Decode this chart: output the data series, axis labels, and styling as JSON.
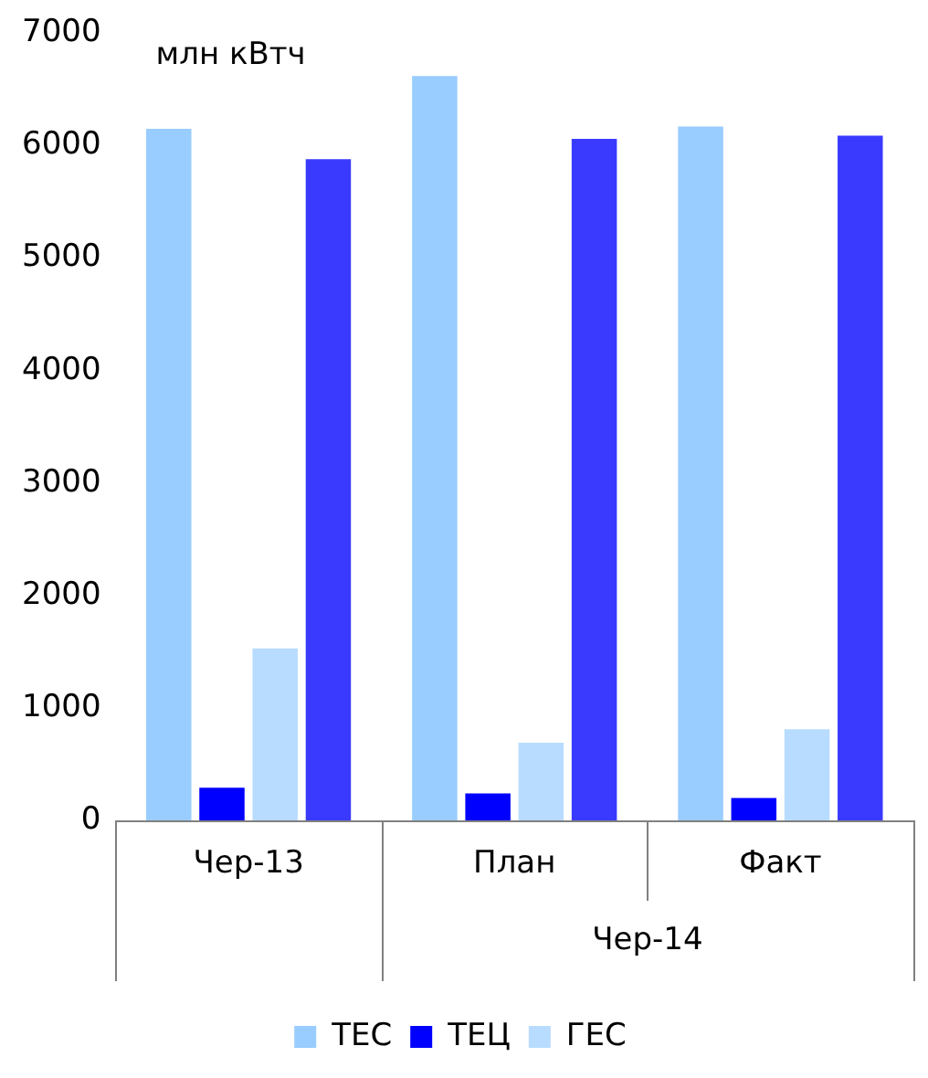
{
  "chart_data": {
    "type": "bar",
    "ylabel": "млн кВтч",
    "categories": [
      "Чер-13",
      "План",
      "Факт"
    ],
    "series": [
      {
        "name": "ТЕС",
        "color": "#99ccff",
        "values": [
          6150,
          6620,
          6170
        ]
      },
      {
        "name": "ТЕЦ",
        "color": "#0000ff",
        "values": [
          290,
          240,
          200
        ]
      },
      {
        "name": "ГЕС",
        "color": "#b8dcff",
        "values": [
          1530,
          690,
          810
        ]
      },
      {
        "color": "#3a3aff",
        "values": [
          5880,
          6060,
          6090
        ]
      }
    ],
    "annotations": [
      "Чер-14"
    ],
    "ylim": [
      0,
      7000
    ],
    "yticks": [
      0,
      1000,
      2000,
      3000,
      4000,
      5000,
      6000,
      7000
    ],
    "grid": false,
    "legend": "bottom"
  }
}
